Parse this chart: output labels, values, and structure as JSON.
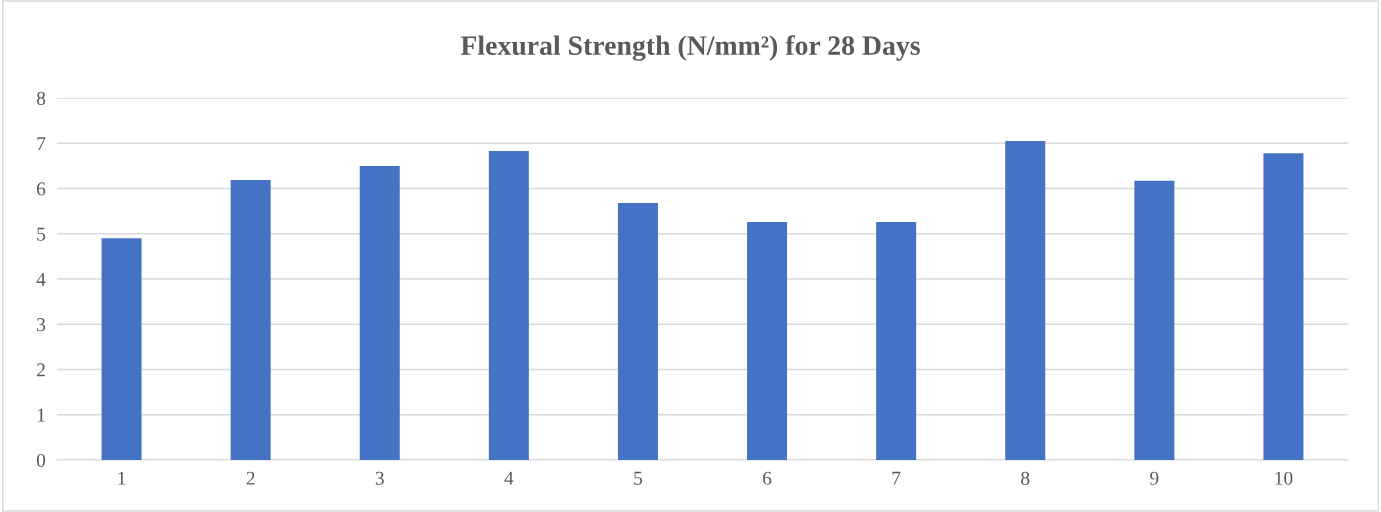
{
  "chart_data": {
    "type": "bar",
    "title": "Flexural Strength (N/mm²) for 28 Days",
    "categories": [
      "1",
      "2",
      "3",
      "4",
      "5",
      "6",
      "7",
      "8",
      "9",
      "10"
    ],
    "values": [
      4.9,
      6.19,
      6.5,
      6.83,
      5.68,
      5.26,
      5.26,
      7.05,
      6.17,
      6.78
    ],
    "color": "#4472c4",
    "ylim": [
      0,
      8
    ],
    "yticks": [
      0,
      1,
      2,
      3,
      4,
      5,
      6,
      7,
      8
    ],
    "grid": "y",
    "legend": false
  }
}
